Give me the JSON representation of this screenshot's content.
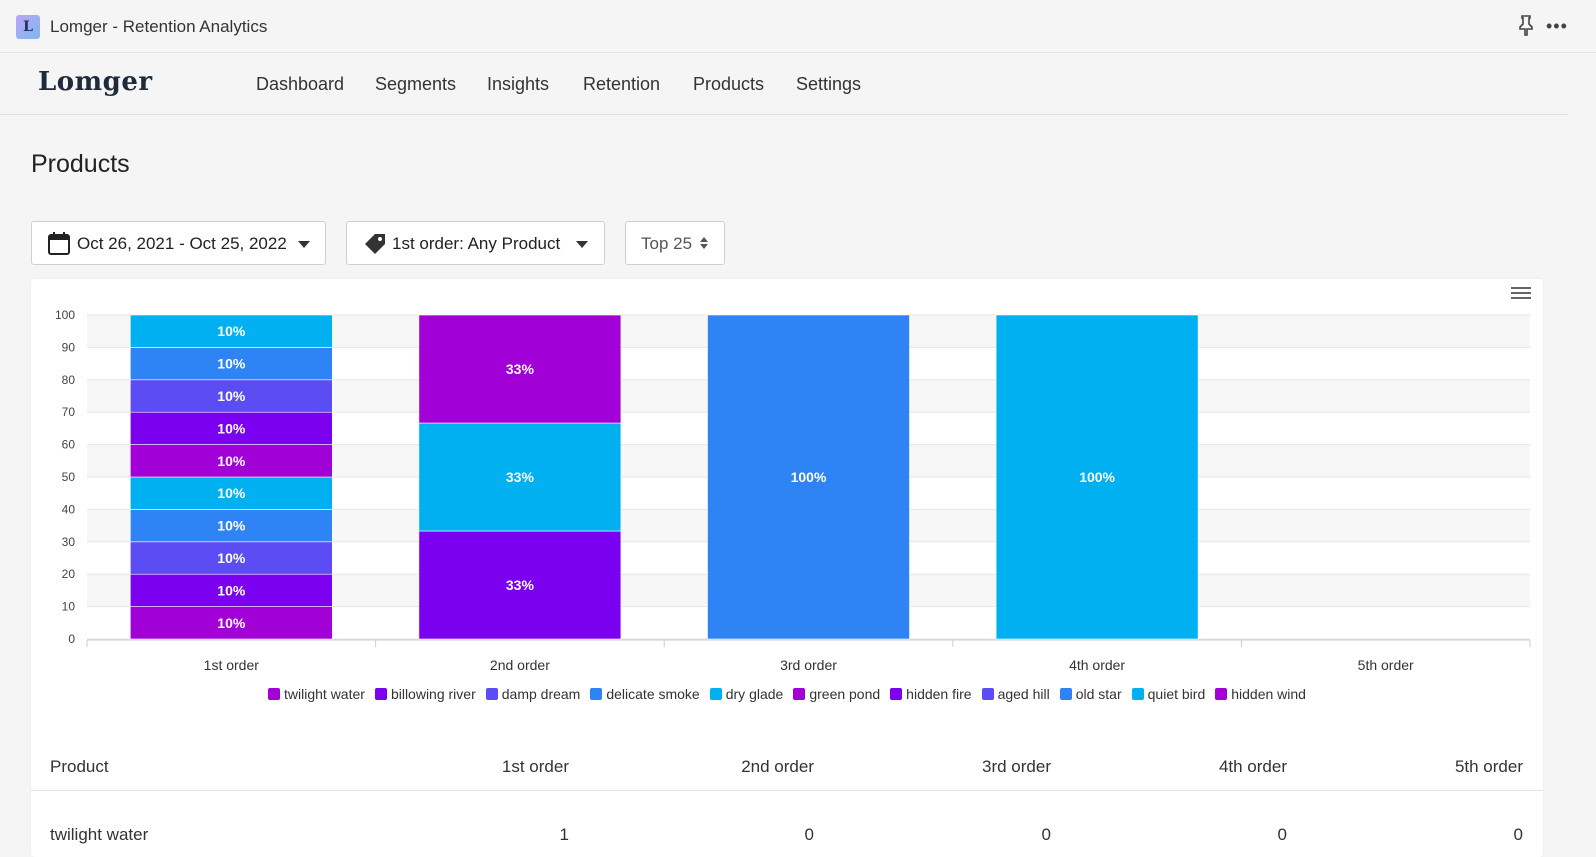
{
  "window": {
    "title": "Lomger - Retention Analytics",
    "icon_letter": "L"
  },
  "brand": "Lomger",
  "nav": [
    "Dashboard",
    "Segments",
    "Insights",
    "Retention",
    "Products",
    "Settings"
  ],
  "page_title": "Products",
  "filters": {
    "date_range": "Oct 26, 2021 - Oct 25, 2022",
    "product": "1st order: Any Product",
    "top": "Top 25"
  },
  "chart_data": {
    "type": "bar",
    "stacked": true,
    "categories": [
      "1st order",
      "2nd order",
      "3rd order",
      "4th order",
      "5th order"
    ],
    "ylim": [
      0,
      100
    ],
    "yticks": [
      0,
      10,
      20,
      30,
      40,
      50,
      60,
      70,
      80,
      90,
      100
    ],
    "grid": true,
    "legend_position": "bottom",
    "series": [
      {
        "name": "twilight water",
        "color": "#a100d6",
        "values": [
          10,
          0,
          0,
          0,
          0
        ]
      },
      {
        "name": "billowing river",
        "color": "#7c00f0",
        "values": [
          10,
          33.33,
          0,
          0,
          0
        ]
      },
      {
        "name": "damp dream",
        "color": "#5b4cf4",
        "values": [
          10,
          0,
          0,
          0,
          0
        ]
      },
      {
        "name": "delicate smoke",
        "color": "#2e83f5",
        "values": [
          10,
          0,
          0,
          0,
          0
        ]
      },
      {
        "name": "dry glade",
        "color": "#00b0f0",
        "values": [
          10,
          0,
          0,
          0,
          0
        ]
      },
      {
        "name": "green pond",
        "color": "#a100d6",
        "values": [
          10,
          0,
          0,
          0,
          0
        ]
      },
      {
        "name": "hidden fire",
        "color": "#7c00f0",
        "values": [
          10,
          0,
          0,
          0,
          0
        ]
      },
      {
        "name": "aged hill",
        "color": "#5b4cf4",
        "values": [
          10,
          0,
          0,
          0,
          0
        ]
      },
      {
        "name": "old star",
        "color": "#2e83f5",
        "values": [
          10,
          0,
          100,
          0,
          0
        ]
      },
      {
        "name": "quiet bird",
        "color": "#00b0f0",
        "values": [
          10,
          33.33,
          0,
          100,
          0
        ]
      },
      {
        "name": "hidden wind",
        "color": "#a100d6",
        "values": [
          0,
          33.33,
          0,
          0,
          0
        ]
      }
    ],
    "data_labels": [
      [
        "10%",
        "10%",
        "10%",
        "10%",
        "10%",
        "10%",
        "10%",
        "10%",
        "10%",
        "10%"
      ],
      [
        "33%",
        "33%",
        "33%"
      ],
      [
        "100%"
      ],
      [
        "100%"
      ],
      []
    ]
  },
  "table": {
    "headers": [
      "Product",
      "1st order",
      "2nd order",
      "3rd order",
      "4th order",
      "5th order"
    ],
    "rows": [
      [
        "twilight water",
        "1",
        "0",
        "0",
        "0",
        "0"
      ]
    ]
  }
}
